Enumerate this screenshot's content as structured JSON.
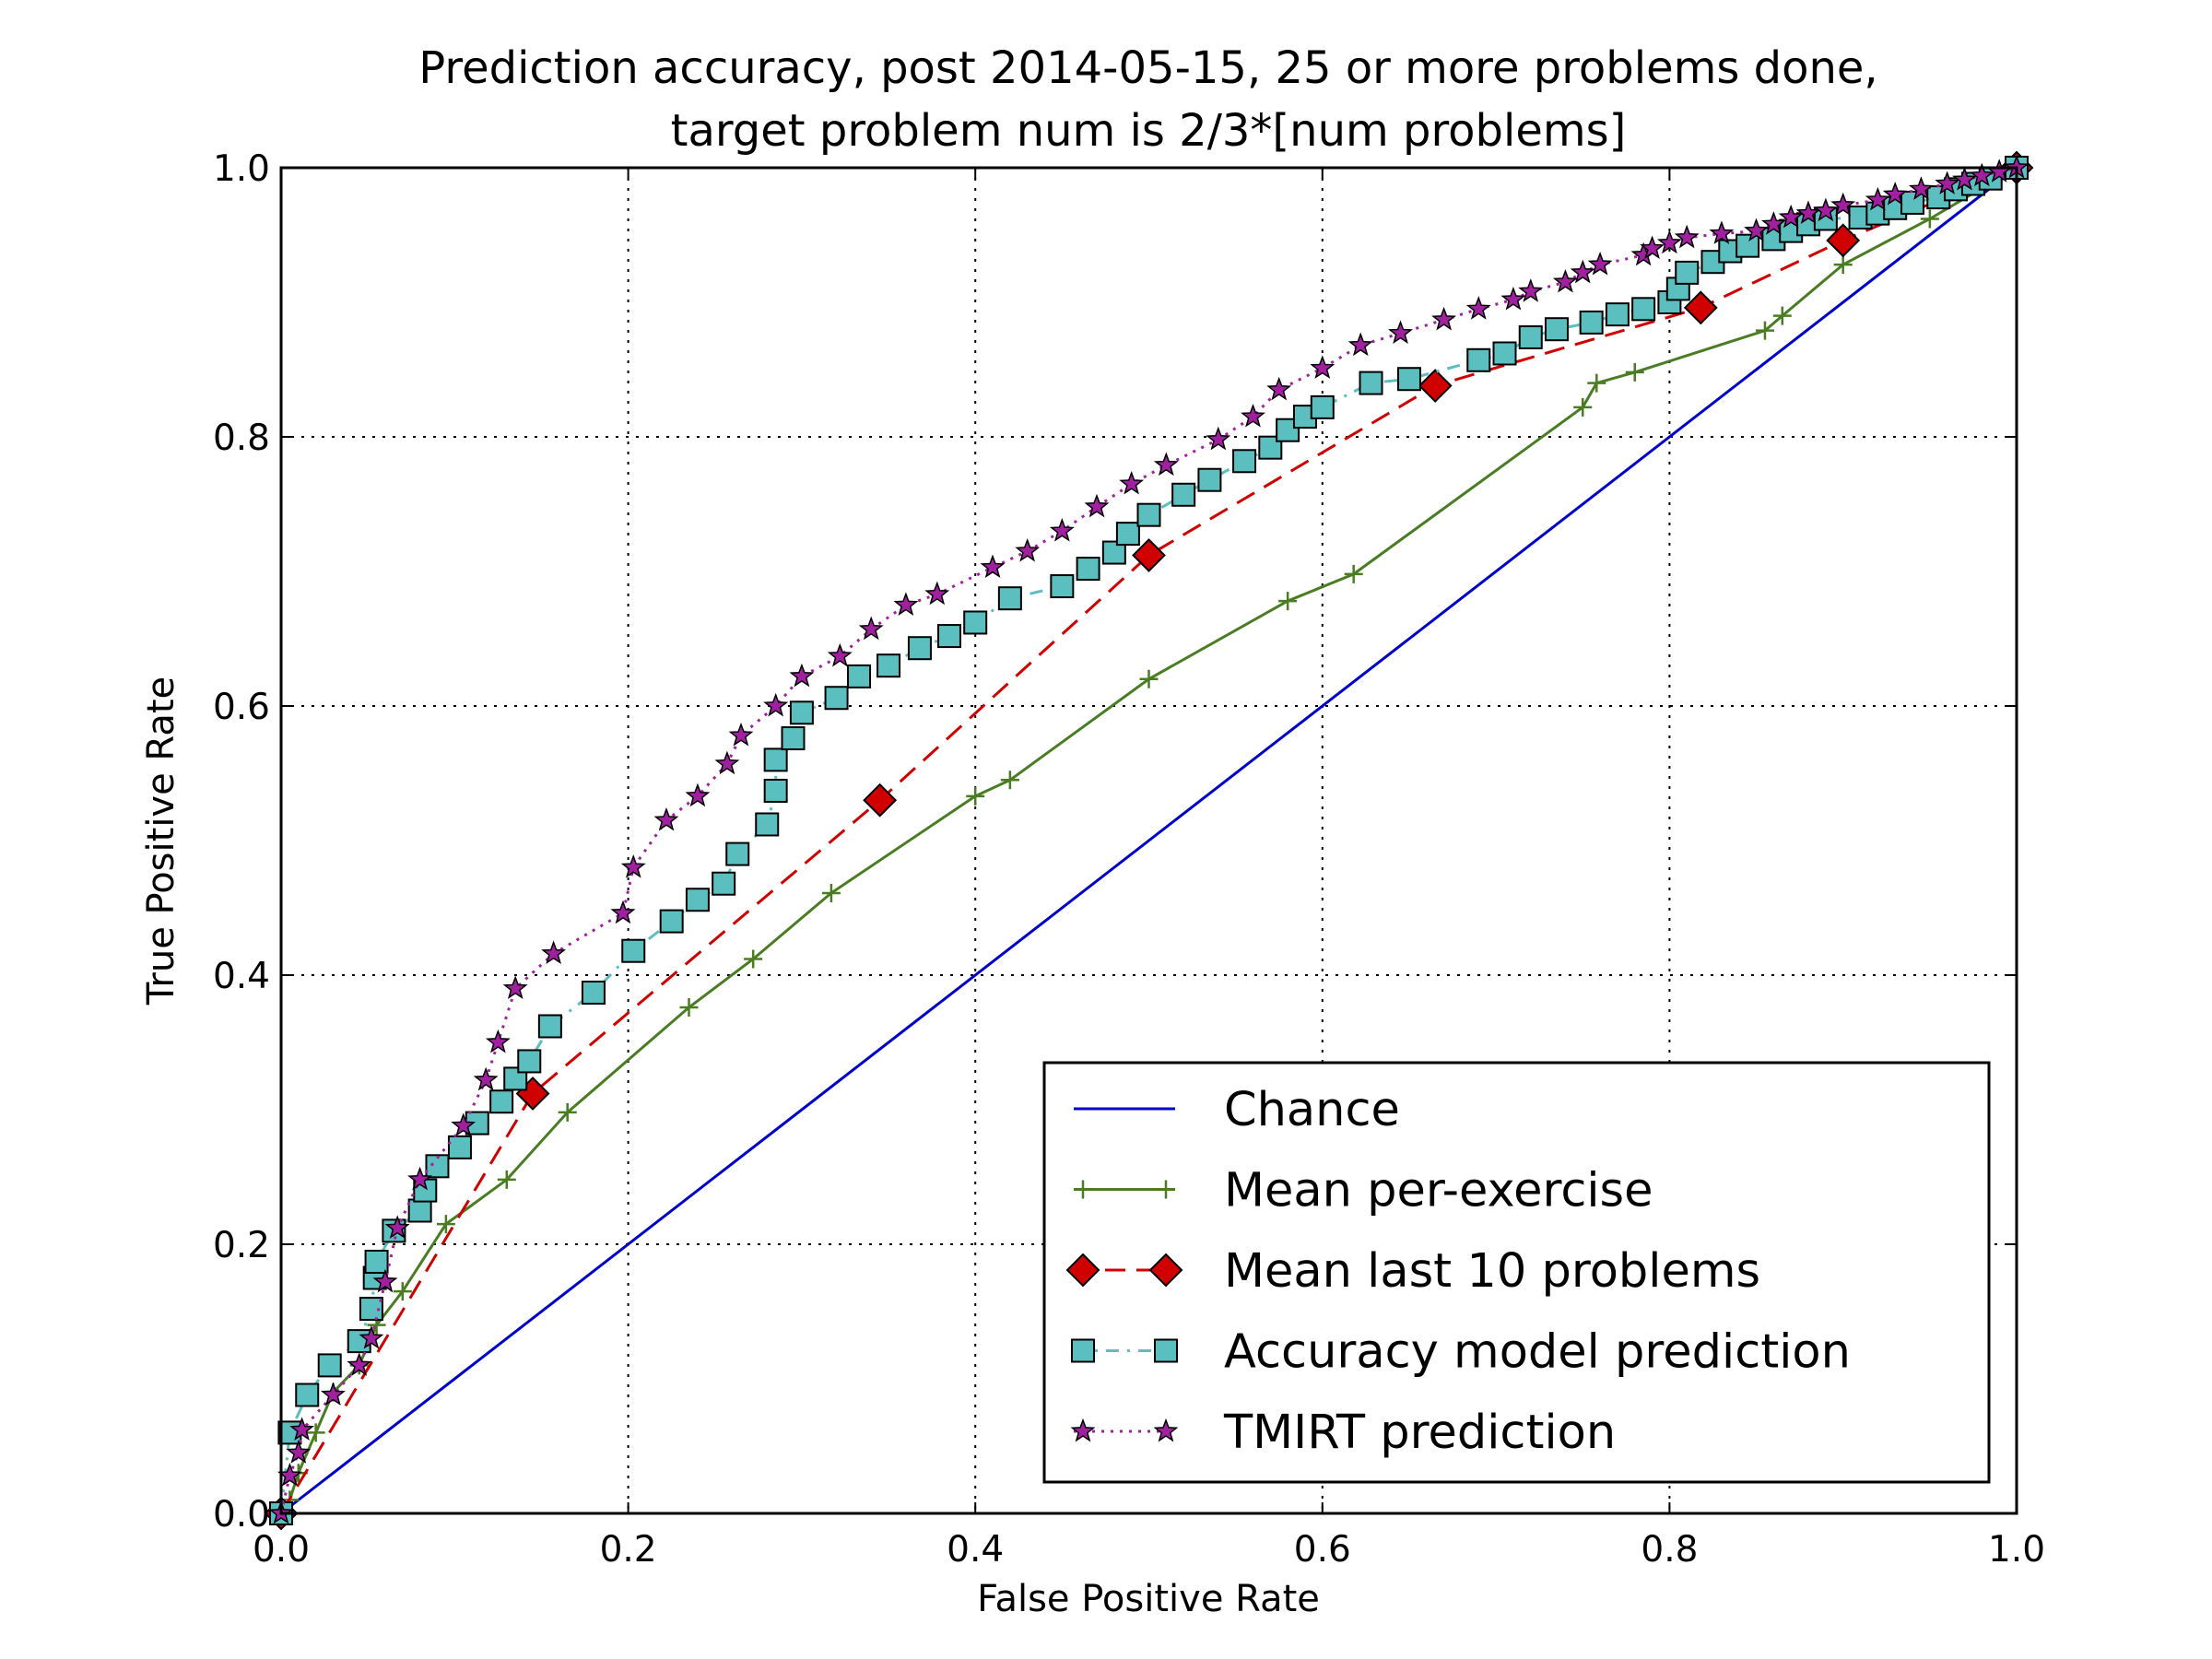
{
  "chart_data": {
    "type": "line",
    "title_lines": [
      "Prediction accuracy, post 2014-05-15, 25 or more problems done,",
      "target problem num is 2/3*[num problems]"
    ],
    "xlabel": "False Positive Rate",
    "ylabel": "True Positive Rate",
    "xlim": [
      0.0,
      1.0
    ],
    "ylim": [
      0.0,
      1.0
    ],
    "xticks": [
      "0.0",
      "0.2",
      "0.4",
      "0.6",
      "0.8",
      "1.0"
    ],
    "yticks": [
      "0.0",
      "0.2",
      "0.4",
      "0.6",
      "0.8",
      "1.0"
    ],
    "grid": true,
    "legend_position": "bottom-right",
    "series": [
      {
        "name": "Chance",
        "color": "#0000cc",
        "line": "solid",
        "marker": "none",
        "points": [
          [
            0.0,
            0.0
          ],
          [
            1.0,
            1.0
          ]
        ]
      },
      {
        "name": "Mean per-exercise",
        "color": "#4a7c23",
        "line": "solid",
        "marker": "plus",
        "points": [
          [
            0.0,
            0.0
          ],
          [
            0.005,
            0.01
          ],
          [
            0.01,
            0.03
          ],
          [
            0.02,
            0.06
          ],
          [
            0.03,
            0.09
          ],
          [
            0.045,
            0.11
          ],
          [
            0.055,
            0.14
          ],
          [
            0.07,
            0.165
          ],
          [
            0.095,
            0.215
          ],
          [
            0.13,
            0.248
          ],
          [
            0.165,
            0.298
          ],
          [
            0.235,
            0.376
          ],
          [
            0.272,
            0.412
          ],
          [
            0.317,
            0.461
          ],
          [
            0.4,
            0.533
          ],
          [
            0.42,
            0.545
          ],
          [
            0.5,
            0.62
          ],
          [
            0.58,
            0.678
          ],
          [
            0.618,
            0.698
          ],
          [
            0.75,
            0.822
          ],
          [
            0.758,
            0.84
          ],
          [
            0.78,
            0.848
          ],
          [
            0.855,
            0.879
          ],
          [
            0.865,
            0.89
          ],
          [
            0.9,
            0.928
          ],
          [
            0.95,
            0.962
          ],
          [
            1.0,
            1.0
          ]
        ]
      },
      {
        "name": "Mean last 10 problems",
        "color": "#d00000",
        "line": "dashed",
        "marker": "diamond",
        "points": [
          [
            0.0,
            0.0
          ],
          [
            0.145,
            0.312
          ],
          [
            0.345,
            0.53
          ],
          [
            0.5,
            0.712
          ],
          [
            0.665,
            0.838
          ],
          [
            0.818,
            0.896
          ],
          [
            0.9,
            0.946
          ],
          [
            1.0,
            1.0
          ]
        ]
      },
      {
        "name": "Accuracy model prediction",
        "color": "#5cbfbf",
        "line": "dashdot",
        "marker": "square",
        "points": [
          [
            0.0,
            0.0
          ],
          [
            0.005,
            0.06
          ],
          [
            0.015,
            0.088
          ],
          [
            0.028,
            0.11
          ],
          [
            0.045,
            0.128
          ],
          [
            0.052,
            0.152
          ],
          [
            0.054,
            0.175
          ],
          [
            0.055,
            0.187
          ],
          [
            0.065,
            0.21
          ],
          [
            0.08,
            0.225
          ],
          [
            0.083,
            0.24
          ],
          [
            0.09,
            0.258
          ],
          [
            0.103,
            0.272
          ],
          [
            0.113,
            0.29
          ],
          [
            0.127,
            0.306
          ],
          [
            0.135,
            0.323
          ],
          [
            0.143,
            0.336
          ],
          [
            0.155,
            0.362
          ],
          [
            0.18,
            0.387
          ],
          [
            0.203,
            0.418
          ],
          [
            0.225,
            0.44
          ],
          [
            0.24,
            0.456
          ],
          [
            0.255,
            0.468
          ],
          [
            0.263,
            0.49
          ],
          [
            0.28,
            0.512
          ],
          [
            0.285,
            0.537
          ],
          [
            0.285,
            0.56
          ],
          [
            0.295,
            0.576
          ],
          [
            0.3,
            0.595
          ],
          [
            0.32,
            0.606
          ],
          [
            0.333,
            0.622
          ],
          [
            0.35,
            0.63
          ],
          [
            0.368,
            0.643
          ],
          [
            0.385,
            0.652
          ],
          [
            0.4,
            0.662
          ],
          [
            0.42,
            0.68
          ],
          [
            0.45,
            0.689
          ],
          [
            0.465,
            0.702
          ],
          [
            0.48,
            0.714
          ],
          [
            0.488,
            0.728
          ],
          [
            0.5,
            0.742
          ],
          [
            0.52,
            0.757
          ],
          [
            0.535,
            0.768
          ],
          [
            0.555,
            0.782
          ],
          [
            0.57,
            0.792
          ],
          [
            0.58,
            0.805
          ],
          [
            0.59,
            0.815
          ],
          [
            0.6,
            0.822
          ],
          [
            0.628,
            0.84
          ],
          [
            0.65,
            0.843
          ],
          [
            0.69,
            0.857
          ],
          [
            0.705,
            0.862
          ],
          [
            0.72,
            0.874
          ],
          [
            0.735,
            0.88
          ],
          [
            0.755,
            0.885
          ],
          [
            0.77,
            0.891
          ],
          [
            0.785,
            0.895
          ],
          [
            0.8,
            0.9
          ],
          [
            0.805,
            0.91
          ],
          [
            0.81,
            0.922
          ],
          [
            0.825,
            0.93
          ],
          [
            0.835,
            0.938
          ],
          [
            0.845,
            0.942
          ],
          [
            0.86,
            0.947
          ],
          [
            0.87,
            0.953
          ],
          [
            0.88,
            0.958
          ],
          [
            0.89,
            0.962
          ],
          [
            0.91,
            0.963
          ],
          [
            0.92,
            0.966
          ],
          [
            0.93,
            0.97
          ],
          [
            0.94,
            0.974
          ],
          [
            0.955,
            0.978
          ],
          [
            0.965,
            0.984
          ],
          [
            0.975,
            0.988
          ],
          [
            0.985,
            0.992
          ],
          [
            1.0,
            1.0
          ]
        ]
      },
      {
        "name": "TMIRT prediction",
        "color": "#a020a0",
        "line": "dotted",
        "marker": "star",
        "points": [
          [
            0.0,
            0.0
          ],
          [
            0.005,
            0.028
          ],
          [
            0.01,
            0.045
          ],
          [
            0.012,
            0.062
          ],
          [
            0.03,
            0.088
          ],
          [
            0.045,
            0.11
          ],
          [
            0.052,
            0.13
          ],
          [
            0.06,
            0.172
          ],
          [
            0.067,
            0.212
          ],
          [
            0.08,
            0.248
          ],
          [
            0.105,
            0.288
          ],
          [
            0.118,
            0.322
          ],
          [
            0.125,
            0.35
          ],
          [
            0.135,
            0.39
          ],
          [
            0.157,
            0.416
          ],
          [
            0.197,
            0.446
          ],
          [
            0.203,
            0.48
          ],
          [
            0.222,
            0.515
          ],
          [
            0.24,
            0.533
          ],
          [
            0.257,
            0.557
          ],
          [
            0.265,
            0.578
          ],
          [
            0.285,
            0.6
          ],
          [
            0.3,
            0.622
          ],
          [
            0.322,
            0.637
          ],
          [
            0.34,
            0.657
          ],
          [
            0.36,
            0.675
          ],
          [
            0.378,
            0.683
          ],
          [
            0.41,
            0.703
          ],
          [
            0.43,
            0.715
          ],
          [
            0.45,
            0.73
          ],
          [
            0.47,
            0.748
          ],
          [
            0.49,
            0.765
          ],
          [
            0.51,
            0.779
          ],
          [
            0.54,
            0.798
          ],
          [
            0.56,
            0.815
          ],
          [
            0.575,
            0.835
          ],
          [
            0.6,
            0.851
          ],
          [
            0.622,
            0.868
          ],
          [
            0.645,
            0.877
          ],
          [
            0.67,
            0.887
          ],
          [
            0.69,
            0.895
          ],
          [
            0.71,
            0.902
          ],
          [
            0.72,
            0.908
          ],
          [
            0.74,
            0.915
          ],
          [
            0.75,
            0.922
          ],
          [
            0.76,
            0.928
          ],
          [
            0.785,
            0.935
          ],
          [
            0.79,
            0.94
          ],
          [
            0.8,
            0.944
          ],
          [
            0.81,
            0.948
          ],
          [
            0.83,
            0.951
          ],
          [
            0.85,
            0.953
          ],
          [
            0.86,
            0.958
          ],
          [
            0.87,
            0.963
          ],
          [
            0.88,
            0.966
          ],
          [
            0.89,
            0.968
          ],
          [
            0.9,
            0.972
          ],
          [
            0.92,
            0.976
          ],
          [
            0.93,
            0.98
          ],
          [
            0.945,
            0.984
          ],
          [
            0.96,
            0.988
          ],
          [
            0.97,
            0.991
          ],
          [
            0.98,
            0.994
          ],
          [
            0.99,
            0.997
          ],
          [
            1.0,
            1.0
          ]
        ]
      }
    ]
  }
}
